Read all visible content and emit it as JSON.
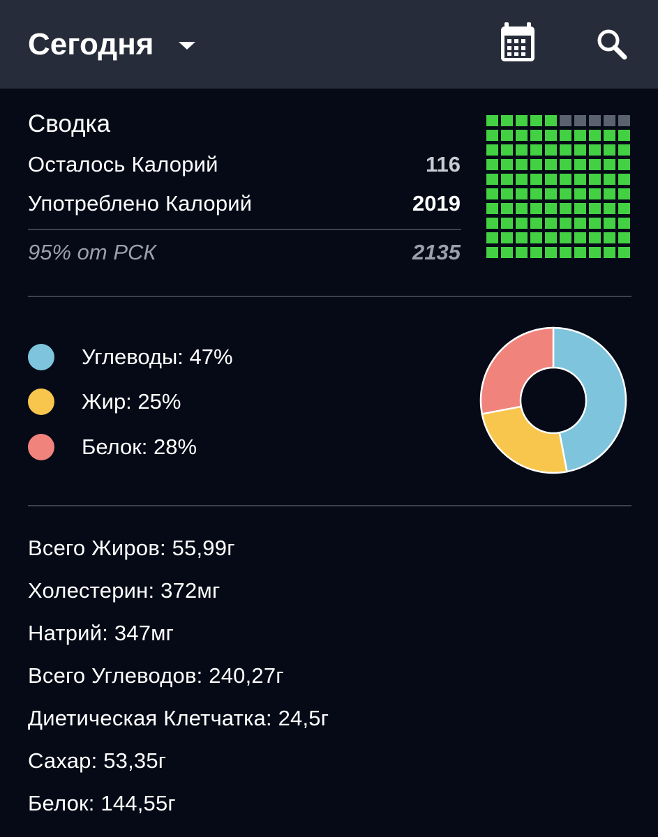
{
  "header": {
    "title": "Сегодня",
    "icons": [
      "calendar-icon",
      "search-icon",
      "dropdown-caret-icon"
    ]
  },
  "summary": {
    "title": "Сводка",
    "remaining_label": "Осталось Калорий",
    "remaining_value": "116",
    "consumed_label": "Употреблено Калорий",
    "consumed_value": "2019",
    "rdi_label": "95% от РСК",
    "rdi_value": "2135",
    "progress_fraction": 0.95
  },
  "macros": {
    "items": [
      {
        "label": "Углеводы: 47%",
        "percent": 47,
        "color": "#7ec4dc"
      },
      {
        "label": "Жир: 25%",
        "percent": 25,
        "color": "#f8c64d"
      },
      {
        "label": "Белок: 28%",
        "percent": 28,
        "color": "#f0847c"
      }
    ]
  },
  "nutrients": [
    "Всего Жиров: 55,99г",
    "Холестерин: 372мг",
    "Натрий: 347мг",
    "Всего Углеводов: 240,27г",
    "Диетическая Клетчатка: 24,5г",
    "Сахар: 53,35г",
    "Белок: 144,55г"
  ],
  "colors": {
    "background": "#050a16",
    "header_background": "#262c39",
    "progress_filled": "#43d143",
    "progress_empty": "#5a6270",
    "muted_text": "#9ba1ab",
    "remaining_value_color": "#c7ccd3"
  }
}
